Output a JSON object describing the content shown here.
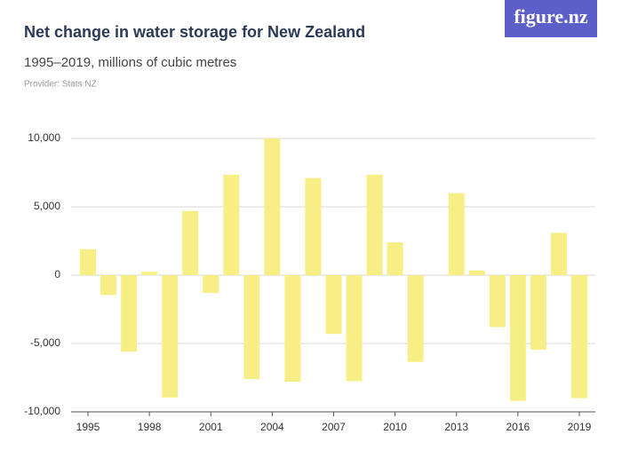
{
  "logo": "figure.nz",
  "chart_data": {
    "type": "bar",
    "title": "Net change in water storage for New Zealand",
    "subtitle": "1995–2019, millions of cubic metres",
    "provider": "Provider: Stats NZ",
    "categories": [
      "1995",
      null,
      null,
      "1998",
      null,
      null,
      "2001",
      null,
      null,
      "2004",
      null,
      null,
      "2007",
      null,
      null,
      "2010",
      null,
      null,
      "2013",
      null,
      null,
      "2016",
      null,
      null,
      "2019"
    ],
    "values": [
      1900,
      -1450,
      -5600,
      250,
      -8950,
      4700,
      -1300,
      7350,
      -7600,
      10000,
      -7800,
      7100,
      -4300,
      -7750,
      7350,
      2400,
      -6350,
      0,
      6000,
      350,
      -3800,
      -9200,
      -5450,
      3100,
      -9000
    ],
    "color": "#f7ef85",
    "ylim": [
      -10000,
      10000
    ],
    "yticks": [
      {
        "value": -10000,
        "label": "-10,000"
      },
      {
        "value": -5000,
        "label": "-5,000"
      },
      0,
      {
        "value": 5000,
        "label": "5,000"
      },
      {
        "value": 10000,
        "label": "10,000"
      }
    ],
    "grid": true
  }
}
